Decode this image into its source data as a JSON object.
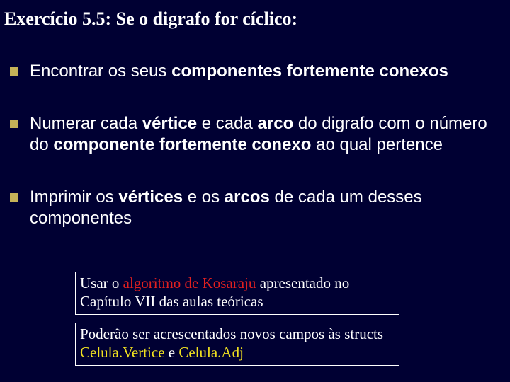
{
  "title": "Exercício 5.5: Se o digrafo for cíclico:",
  "bullets": {
    "b1_pre": "Encontrar os seus ",
    "b1_bold": "componentes fortemente conexos",
    "b2_a": "Numerar cada ",
    "b2_b": "vértice",
    "b2_c": " e cada ",
    "b2_d": "arco",
    "b2_e": " do digrafo com o número do ",
    "b2_f": "componente fortemente conexo",
    "b2_g": " ao qual pertence",
    "b3_a": "Imprimir os ",
    "b3_b": "vértices",
    "b3_c": " e os ",
    "b3_d": "arcos",
    "b3_e": " de cada um desses componentes"
  },
  "note1": {
    "a": "Usar o ",
    "b": "algoritmo de Kosaraju",
    "c": " apresentado no Capítulo VII das aulas teóricas"
  },
  "note2": {
    "a": "Poderão ser acrescentados novos campos às structs ",
    "b": "Celula.Vertice",
    "c": " e ",
    "d": "Celula.Adj"
  },
  "colors": {
    "background": "#000033",
    "text": "#ffffff",
    "bullet": "#c5b258",
    "red": "#e02020",
    "yellow": "#f0e020"
  }
}
